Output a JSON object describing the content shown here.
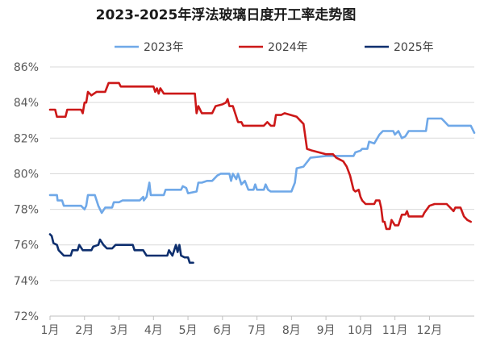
{
  "chart_data": {
    "type": "line",
    "title": "2023-2025年浮法玻璃日度开工率走势图",
    "xlabel": "",
    "ylabel": "",
    "x_tick_labels": [
      "1月",
      "2月",
      "3月",
      "4月",
      "5月",
      "6月",
      "7月",
      "8月",
      "9月",
      "10月",
      "11月",
      "12月"
    ],
    "y_ticks": [
      "72%",
      "74%",
      "76%",
      "78%",
      "80%",
      "82%",
      "84%",
      "86%"
    ],
    "ylim": [
      72,
      86.5
    ],
    "xlim": [
      0,
      12.3
    ],
    "grid": "horizontal",
    "legend_position": "top",
    "series": [
      {
        "name": "2023年",
        "color": "#6fa8e8",
        "points": [
          [
            0.0,
            78.8
          ],
          [
            0.2,
            78.8
          ],
          [
            0.22,
            78.5
          ],
          [
            0.35,
            78.5
          ],
          [
            0.4,
            78.2
          ],
          [
            0.9,
            78.2
          ],
          [
            1.0,
            78.0
          ],
          [
            1.05,
            78.2
          ],
          [
            1.1,
            78.8
          ],
          [
            1.3,
            78.8
          ],
          [
            1.4,
            78.2
          ],
          [
            1.5,
            77.8
          ],
          [
            1.6,
            78.1
          ],
          [
            1.8,
            78.1
          ],
          [
            1.85,
            78.4
          ],
          [
            2.0,
            78.4
          ],
          [
            2.1,
            78.5
          ],
          [
            2.6,
            78.5
          ],
          [
            2.7,
            78.7
          ],
          [
            2.72,
            78.5
          ],
          [
            2.8,
            78.7
          ],
          [
            2.88,
            79.5
          ],
          [
            2.92,
            78.8
          ],
          [
            3.3,
            78.8
          ],
          [
            3.35,
            79.1
          ],
          [
            3.8,
            79.1
          ],
          [
            3.85,
            79.3
          ],
          [
            3.95,
            79.2
          ],
          [
            4.0,
            78.9
          ],
          [
            4.25,
            79.0
          ],
          [
            4.3,
            79.5
          ],
          [
            4.4,
            79.5
          ],
          [
            4.55,
            79.6
          ],
          [
            4.7,
            79.6
          ],
          [
            4.85,
            79.9
          ],
          [
            4.95,
            80.0
          ],
          [
            5.2,
            80.0
          ],
          [
            5.25,
            79.6
          ],
          [
            5.3,
            80.0
          ],
          [
            5.4,
            79.7
          ],
          [
            5.45,
            80.0
          ],
          [
            5.55,
            79.4
          ],
          [
            5.65,
            79.6
          ],
          [
            5.75,
            79.1
          ],
          [
            5.9,
            79.1
          ],
          [
            5.95,
            79.4
          ],
          [
            6.0,
            79.1
          ],
          [
            6.2,
            79.1
          ],
          [
            6.25,
            79.4
          ],
          [
            6.32,
            79.1
          ],
          [
            6.4,
            79.0
          ],
          [
            7.0,
            79.0
          ],
          [
            7.1,
            79.5
          ],
          [
            7.15,
            80.3
          ],
          [
            7.35,
            80.4
          ],
          [
            7.55,
            80.9
          ],
          [
            8.0,
            81.0
          ],
          [
            8.8,
            81.0
          ],
          [
            8.85,
            81.2
          ],
          [
            9.0,
            81.3
          ],
          [
            9.05,
            81.4
          ],
          [
            9.2,
            81.4
          ],
          [
            9.25,
            81.8
          ],
          [
            9.4,
            81.7
          ],
          [
            9.55,
            82.2
          ],
          [
            9.65,
            82.4
          ],
          [
            9.95,
            82.4
          ],
          [
            10.0,
            82.2
          ],
          [
            10.1,
            82.4
          ],
          [
            10.2,
            82.0
          ],
          [
            10.3,
            82.1
          ],
          [
            10.4,
            82.4
          ],
          [
            10.9,
            82.4
          ],
          [
            10.95,
            83.1
          ],
          [
            11.35,
            83.1
          ],
          [
            11.45,
            82.9
          ],
          [
            11.55,
            82.7
          ],
          [
            12.0,
            82.7
          ],
          [
            12.2,
            82.7
          ],
          [
            12.3,
            82.3
          ]
        ]
      },
      {
        "name": "2024年",
        "color": "#cc1818",
        "points": [
          [
            0.0,
            83.6
          ],
          [
            0.15,
            83.6
          ],
          [
            0.2,
            83.2
          ],
          [
            0.45,
            83.2
          ],
          [
            0.5,
            83.6
          ],
          [
            0.9,
            83.6
          ],
          [
            0.95,
            83.4
          ],
          [
            1.0,
            84.0
          ],
          [
            1.05,
            84.0
          ],
          [
            1.1,
            84.6
          ],
          [
            1.2,
            84.4
          ],
          [
            1.35,
            84.6
          ],
          [
            1.5,
            84.6
          ],
          [
            1.6,
            84.6
          ],
          [
            1.7,
            85.1
          ],
          [
            2.0,
            85.1
          ],
          [
            2.05,
            84.9
          ],
          [
            3.0,
            84.9
          ],
          [
            3.05,
            84.6
          ],
          [
            3.1,
            84.8
          ],
          [
            3.15,
            84.5
          ],
          [
            3.2,
            84.8
          ],
          [
            3.3,
            84.5
          ],
          [
            4.2,
            84.5
          ],
          [
            4.25,
            83.4
          ],
          [
            4.3,
            83.8
          ],
          [
            4.4,
            83.4
          ],
          [
            4.7,
            83.4
          ],
          [
            4.8,
            83.8
          ],
          [
            5.0,
            83.9
          ],
          [
            5.1,
            84.0
          ],
          [
            5.15,
            84.2
          ],
          [
            5.2,
            83.8
          ],
          [
            5.3,
            83.8
          ],
          [
            5.45,
            82.9
          ],
          [
            5.55,
            82.9
          ],
          [
            5.6,
            82.7
          ],
          [
            6.0,
            82.7
          ],
          [
            6.2,
            82.7
          ],
          [
            6.3,
            82.9
          ],
          [
            6.4,
            82.7
          ],
          [
            6.5,
            82.7
          ],
          [
            6.55,
            83.3
          ],
          [
            6.7,
            83.3
          ],
          [
            6.8,
            83.4
          ],
          [
            7.15,
            83.2
          ],
          [
            7.35,
            82.8
          ],
          [
            7.45,
            81.4
          ],
          [
            7.6,
            81.3
          ],
          [
            7.8,
            81.2
          ],
          [
            8.0,
            81.1
          ],
          [
            8.2,
            81.1
          ],
          [
            8.3,
            80.9
          ],
          [
            8.4,
            80.8
          ],
          [
            8.5,
            80.7
          ],
          [
            8.6,
            80.4
          ],
          [
            8.7,
            79.9
          ],
          [
            8.8,
            79.1
          ],
          [
            8.85,
            79.0
          ],
          [
            8.95,
            79.1
          ],
          [
            9.0,
            78.7
          ],
          [
            9.05,
            78.5
          ],
          [
            9.15,
            78.3
          ],
          [
            9.3,
            78.3
          ],
          [
            9.4,
            78.3
          ],
          [
            9.45,
            78.5
          ],
          [
            9.55,
            78.5
          ],
          [
            9.6,
            78.1
          ],
          [
            9.65,
            77.3
          ],
          [
            9.7,
            77.3
          ],
          [
            9.75,
            76.9
          ],
          [
            9.85,
            76.9
          ],
          [
            9.9,
            77.4
          ],
          [
            10.0,
            77.1
          ],
          [
            10.1,
            77.1
          ],
          [
            10.2,
            77.7
          ],
          [
            10.3,
            77.7
          ],
          [
            10.35,
            77.9
          ],
          [
            10.4,
            77.6
          ],
          [
            10.8,
            77.6
          ],
          [
            10.85,
            77.8
          ],
          [
            11.0,
            78.2
          ],
          [
            11.15,
            78.3
          ],
          [
            11.5,
            78.3
          ],
          [
            11.6,
            78.1
          ],
          [
            11.7,
            77.9
          ],
          [
            11.75,
            78.1
          ],
          [
            11.9,
            78.1
          ],
          [
            12.0,
            77.6
          ],
          [
            12.1,
            77.4
          ],
          [
            12.2,
            77.3
          ]
        ]
      },
      {
        "name": "2025年",
        "color": "#0e2f6e",
        "points": [
          [
            0.0,
            76.6
          ],
          [
            0.05,
            76.5
          ],
          [
            0.1,
            76.1
          ],
          [
            0.2,
            76.0
          ],
          [
            0.25,
            75.7
          ],
          [
            0.4,
            75.4
          ],
          [
            0.6,
            75.4
          ],
          [
            0.65,
            75.7
          ],
          [
            0.8,
            75.7
          ],
          [
            0.85,
            76.0
          ],
          [
            0.95,
            75.7
          ],
          [
            1.2,
            75.7
          ],
          [
            1.25,
            75.9
          ],
          [
            1.4,
            76.0
          ],
          [
            1.45,
            76.3
          ],
          [
            1.55,
            76.0
          ],
          [
            1.65,
            75.8
          ],
          [
            1.8,
            75.8
          ],
          [
            1.9,
            76.0
          ],
          [
            2.0,
            76.0
          ],
          [
            2.4,
            76.0
          ],
          [
            2.45,
            75.7
          ],
          [
            2.7,
            75.7
          ],
          [
            2.8,
            75.4
          ],
          [
            3.4,
            75.4
          ],
          [
            3.45,
            75.7
          ],
          [
            3.55,
            75.4
          ],
          [
            3.65,
            76.0
          ],
          [
            3.7,
            75.6
          ],
          [
            3.75,
            76.0
          ],
          [
            3.8,
            75.4
          ],
          [
            3.9,
            75.3
          ],
          [
            4.0,
            75.3
          ],
          [
            4.05,
            75.0
          ],
          [
            4.15,
            75.0
          ]
        ]
      }
    ]
  }
}
